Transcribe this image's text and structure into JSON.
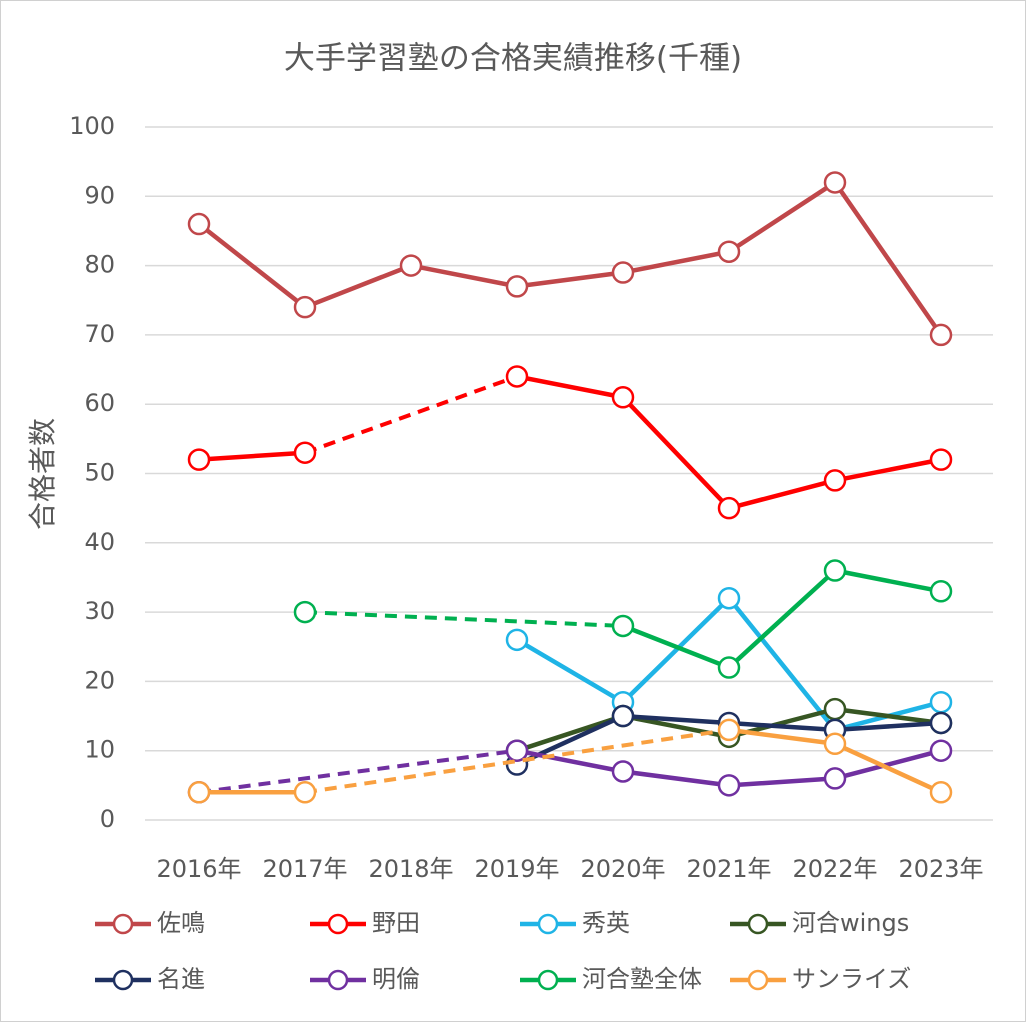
{
  "chart_data": {
    "type": "line",
    "title": "大手学習塾の合格実績推移(千種)",
    "y_label": "合格者数",
    "categories": [
      "2016年",
      "2017年",
      "2018年",
      "2019年",
      "2020年",
      "2021年",
      "2022年",
      "2023年"
    ],
    "series": [
      {
        "name": "佐鳴",
        "color": "#c0474a",
        "values": [
          86,
          74,
          80,
          77,
          79,
          82,
          92,
          70
        ]
      },
      {
        "name": "野田",
        "color": "#ff0000",
        "values": [
          52,
          53,
          null,
          64,
          61,
          45,
          49,
          52
        ]
      },
      {
        "name": "秀英",
        "color": "#1fb4e6",
        "values": [
          null,
          null,
          null,
          26,
          17,
          32,
          13,
          17
        ]
      },
      {
        "name": "河合wings",
        "color": "#375623",
        "values": [
          null,
          null,
          null,
          10,
          15,
          12,
          16,
          14
        ]
      },
      {
        "name": "名進",
        "color": "#1f3060",
        "values": [
          null,
          null,
          null,
          8,
          15,
          14,
          13,
          14
        ]
      },
      {
        "name": "明倫",
        "color": "#7030a0",
        "values": [
          4,
          null,
          null,
          10,
          7,
          5,
          6,
          10
        ]
      },
      {
        "name": "河合塾全体",
        "color": "#00b050",
        "values": [
          null,
          30,
          null,
          null,
          28,
          22,
          36,
          33
        ]
      },
      {
        "name": "サンライズ",
        "color": "#f9a040",
        "values": [
          4,
          4,
          null,
          null,
          null,
          13,
          11,
          4
        ]
      }
    ],
    "ylim": [
      0,
      100
    ],
    "yticks": [
      0,
      10,
      20,
      30,
      40,
      50,
      60,
      70,
      80,
      90,
      100
    ],
    "grid": true,
    "gaps": "dashed",
    "legend": "bottom"
  }
}
